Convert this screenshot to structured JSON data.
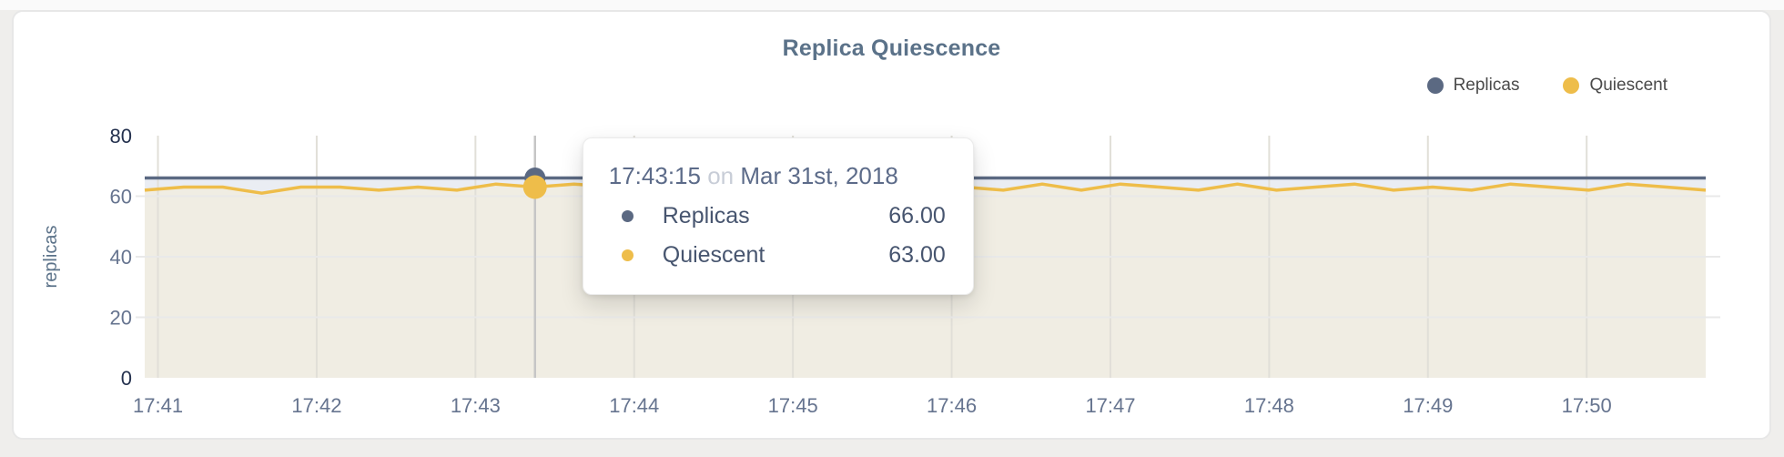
{
  "card": {
    "title": "Replica Quiescence"
  },
  "chart_data": {
    "type": "line",
    "title": "Replica Quiescence",
    "xlabel": "",
    "ylabel": "replicas",
    "ylim": [
      0,
      80
    ],
    "y_ticks": [
      0,
      20,
      40,
      60,
      80
    ],
    "x_ticks": [
      "17:41",
      "17:42",
      "17:43",
      "17:44",
      "17:45",
      "17:46",
      "17:47",
      "17:48",
      "17:49",
      "17:50"
    ],
    "legend_position": "top-right",
    "grid": {
      "vertical": "#e1dfd8",
      "horizontal": "#e9e9e9",
      "crosshair": "#c6c6c6"
    },
    "axis_colors": {
      "major_tick": "#24314e",
      "minor_tick": "#66748f",
      "axis_title": "#5b7289"
    },
    "series": [
      {
        "name": "Replicas",
        "color": "#5b6982",
        "fill": "#eaedf3",
        "values": [
          66,
          66,
          66,
          66,
          66,
          66,
          66,
          66,
          66,
          66,
          66,
          66,
          66,
          66,
          66,
          66,
          66,
          66,
          66,
          66,
          66,
          66,
          66,
          66,
          66,
          66,
          66,
          66,
          66,
          66,
          66,
          66,
          66,
          66,
          66,
          66,
          66,
          66,
          66,
          66,
          66
        ]
      },
      {
        "name": "Quiescent",
        "color": "#eebd4a",
        "fill": "#f0ede3",
        "values": [
          62,
          63,
          63,
          61,
          63,
          63,
          62,
          63,
          62,
          64,
          63,
          64,
          63,
          62,
          63,
          64,
          62,
          64,
          63,
          62,
          64,
          63,
          62,
          64,
          62,
          64,
          63,
          62,
          64,
          62,
          63,
          64,
          62,
          63,
          62,
          64,
          63,
          62,
          64,
          63,
          62
        ]
      }
    ],
    "hover": {
      "index": 10,
      "time": "17:43:15",
      "conjunction": "on",
      "date": "Mar 31st, 2018",
      "rows": [
        {
          "name": "Replicas",
          "value": "66.00"
        },
        {
          "name": "Quiescent",
          "value": "63.00"
        }
      ]
    }
  }
}
